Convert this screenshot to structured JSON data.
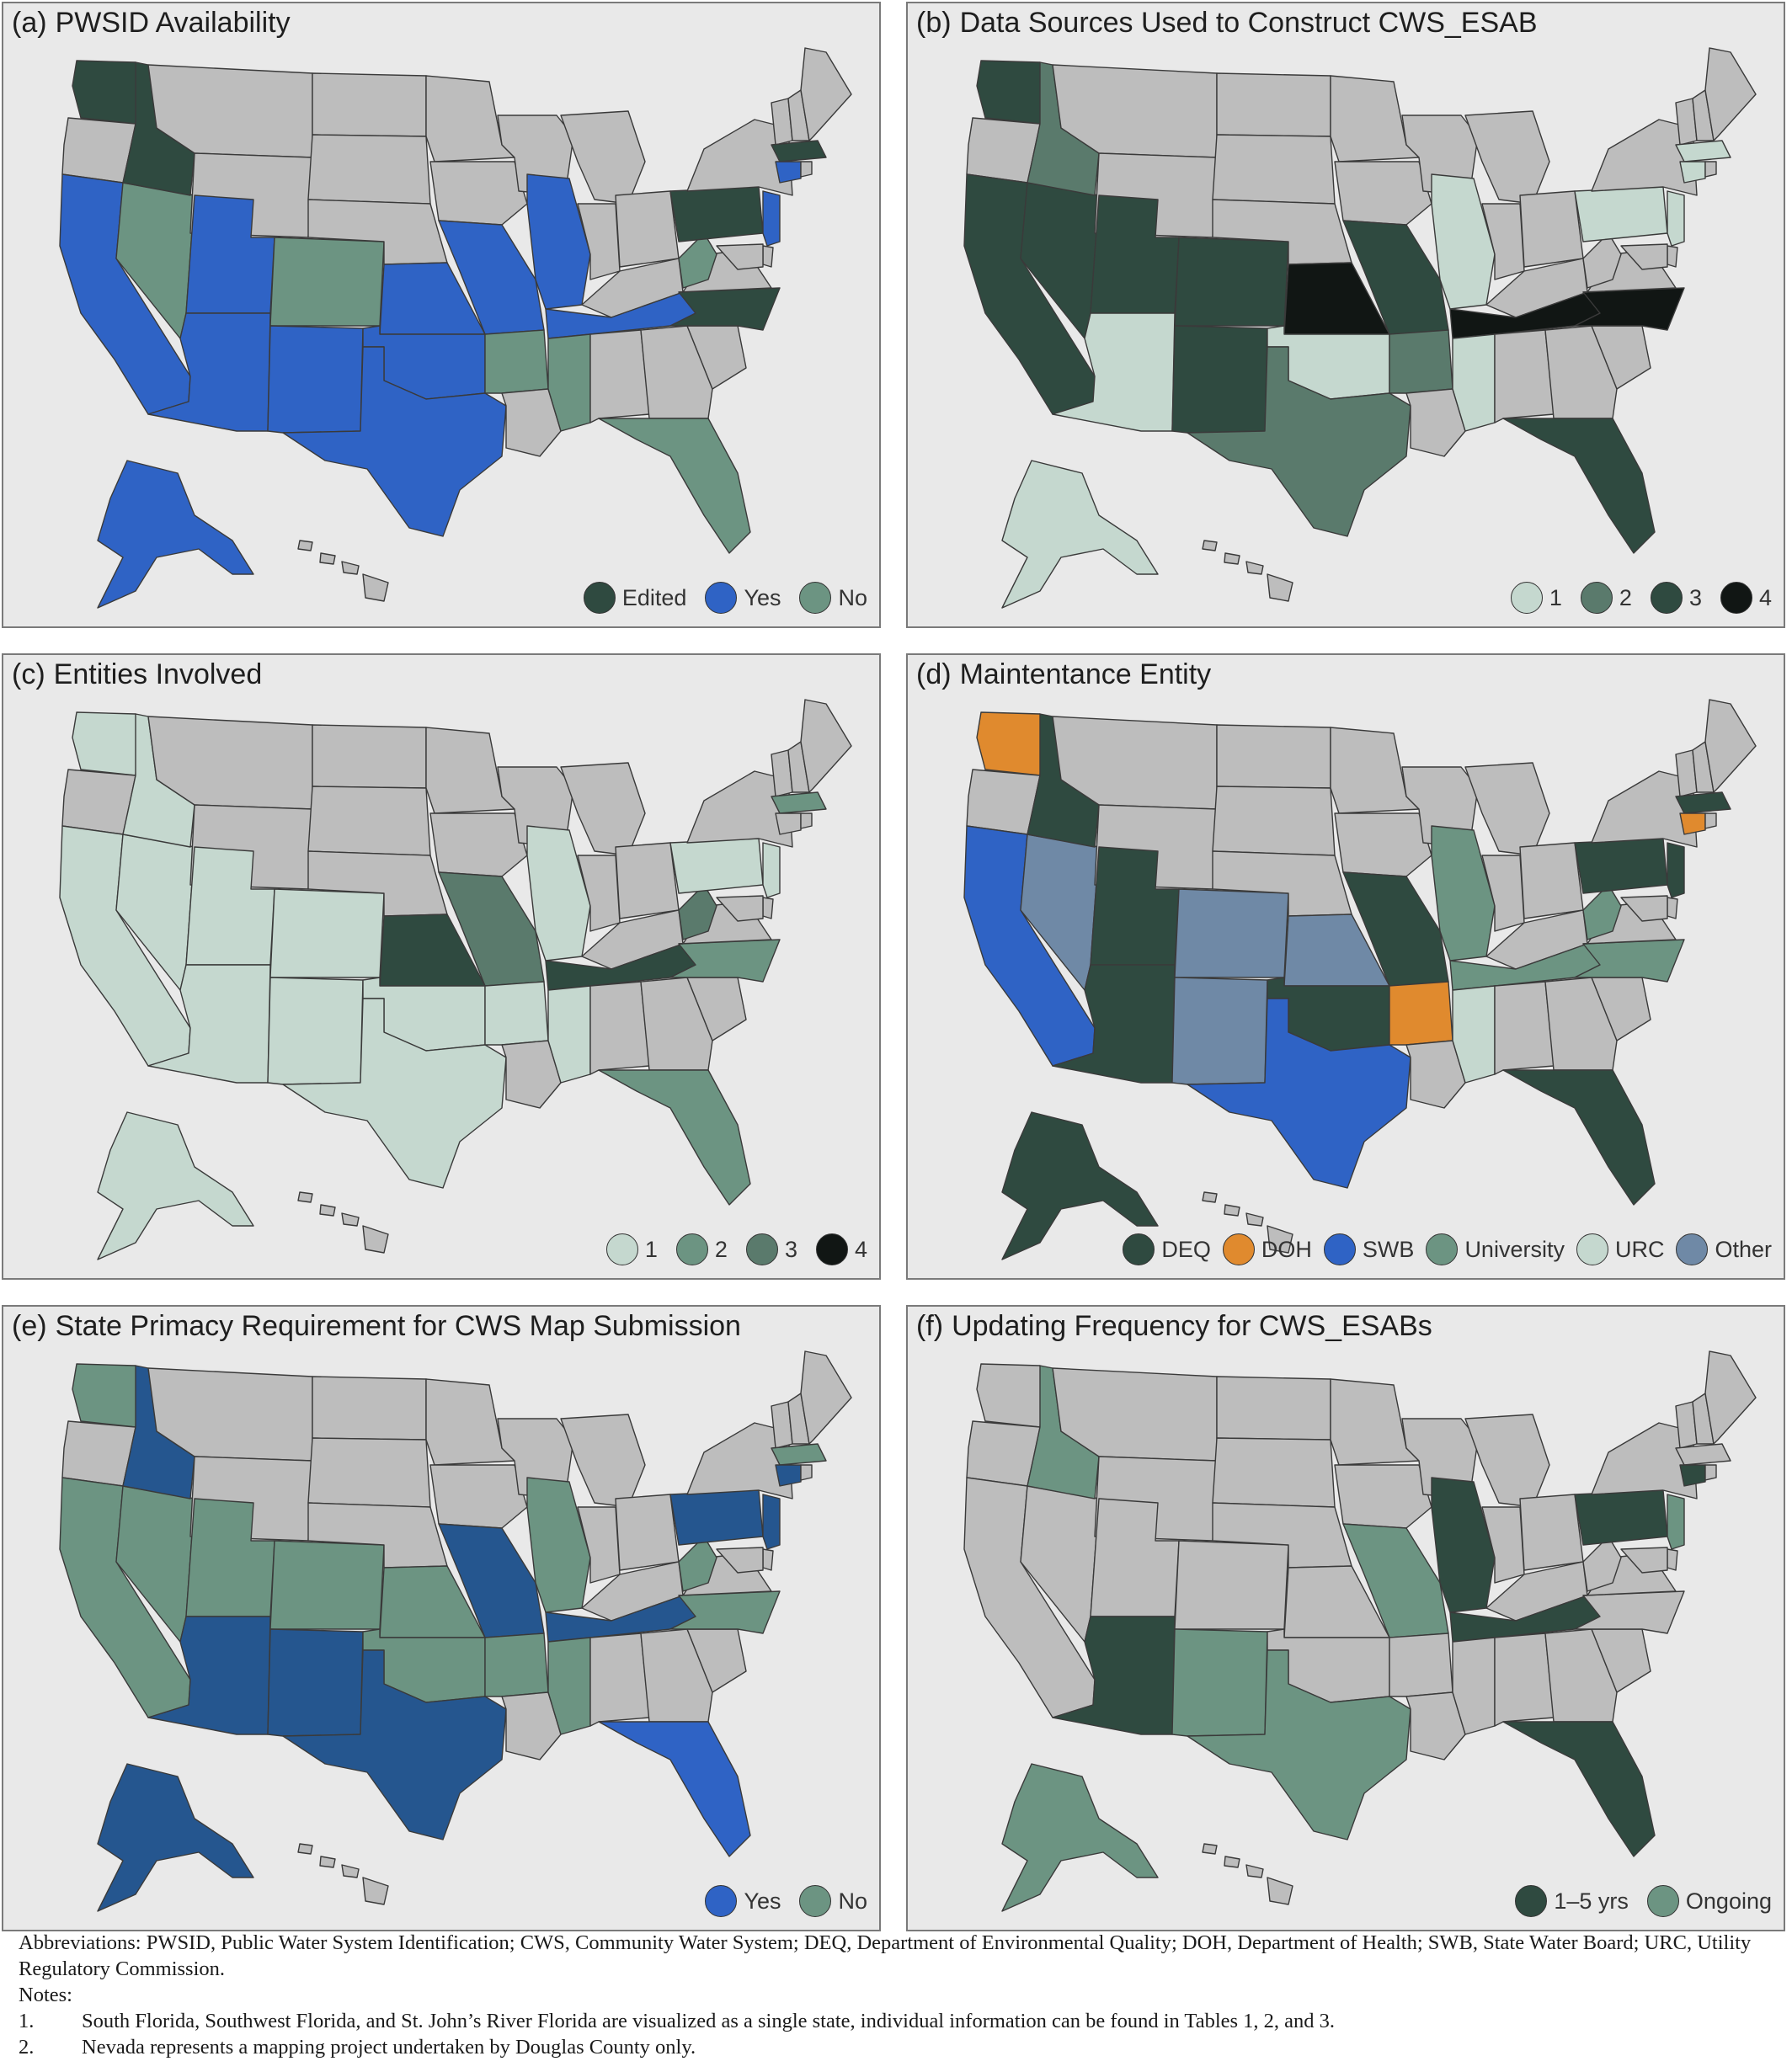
{
  "palette": {
    "gray": "#bdbdbd",
    "dark_green": "#2f4a40",
    "blue": "#2f63c5",
    "teal": "#6c9482",
    "light_mint": "#c5d8cf",
    "mid_green": "#5a7a6c",
    "near_black": "#111614",
    "orange": "#e08a2e",
    "slate": "#6f89a6",
    "navy": "#25568f"
  },
  "panels": [
    {
      "tag": "(a)",
      "title": "PWSID Availability",
      "legend": [
        {
          "label": "Edited",
          "color": "#2f4a40"
        },
        {
          "label": "Yes",
          "color": "#2f63c5"
        },
        {
          "label": "No",
          "color": "#6c9482"
        }
      ],
      "states": {
        "WA": "#2f4a40",
        "ID": "#2f4a40",
        "CA": "#2f63c5",
        "NV": "#6c9482",
        "UT": "#2f63c5",
        "AZ": "#2f63c5",
        "NM": "#2f63c5",
        "CO": "#6c9482",
        "TX": "#2f63c5",
        "OK": "#2f63c5",
        "KS": "#2f63c5",
        "MO": "#2f63c5",
        "IL": "#2f63c5",
        "TN": "#2f63c5",
        "AR": "#6c9482",
        "MS": "#6c9482",
        "FL": "#6c9482",
        "NC": "#2f4a40",
        "WV": "#6c9482",
        "PA": "#2f4a40",
        "NJ": "#2f63c5",
        "MA": "#2f4a40",
        "CT": "#2f63c5",
        "AK": "#2f63c5"
      }
    },
    {
      "tag": "(b)",
      "title": "Data Sources Used to Construct CWS_ESAB",
      "legend": [
        {
          "label": "1",
          "color": "#c5d8cf"
        },
        {
          "label": "2",
          "color": "#5a7a6c"
        },
        {
          "label": "3",
          "color": "#2f4a40"
        },
        {
          "label": "4",
          "color": "#111614"
        }
      ],
      "states": {
        "WA": "#2f4a40",
        "ID": "#5a7a6c",
        "CA": "#2f4a40",
        "NV": "#2f4a40",
        "UT": "#2f4a40",
        "CO": "#2f4a40",
        "NM": "#2f4a40",
        "AZ": "#c5d8cf",
        "TX": "#5a7a6c",
        "OK": "#c5d8cf",
        "KS": "#111614",
        "MO": "#2f4a40",
        "AR": "#5a7a6c",
        "IL": "#c5d8cf",
        "MS": "#c5d8cf",
        "TN": "#111614",
        "NC": "#111614",
        "FL": "#2f4a40",
        "PA": "#c5d8cf",
        "NJ": "#c5d8cf",
        "CT": "#c5d8cf",
        "MA": "#c5d8cf",
        "AK": "#c5d8cf"
      }
    },
    {
      "tag": "(c)",
      "title": "Entities Involved",
      "legend": [
        {
          "label": "1",
          "color": "#c5d8cf"
        },
        {
          "label": "2",
          "color": "#6c9482"
        },
        {
          "label": "3",
          "color": "#5a7a6c"
        },
        {
          "label": "4",
          "color": "#111614"
        }
      ],
      "states": {
        "WA": "#c5d8cf",
        "ID": "#c5d8cf",
        "CA": "#c5d8cf",
        "NV": "#c5d8cf",
        "UT": "#c5d8cf",
        "CO": "#c5d8cf",
        "AZ": "#c5d8cf",
        "NM": "#c5d8cf",
        "TX": "#c5d8cf",
        "OK": "#c5d8cf",
        "KS": "#2f4a40",
        "MO": "#5a7a6c",
        "AR": "#c5d8cf",
        "IL": "#c5d8cf",
        "MS": "#c5d8cf",
        "TN": "#2f4a40",
        "WV": "#5a7a6c",
        "NC": "#6c9482",
        "FL": "#6c9482",
        "PA": "#c5d8cf",
        "NJ": "#c5d8cf",
        "MA": "#6c9482",
        "AK": "#c5d8cf"
      }
    },
    {
      "tag": "(d)",
      "title": "Maintentance Entity",
      "legend": [
        {
          "label": "DEQ",
          "color": "#2f4a40"
        },
        {
          "label": "DOH",
          "color": "#e08a2e"
        },
        {
          "label": "SWB",
          "color": "#2f63c5"
        },
        {
          "label": "University",
          "color": "#6c9482"
        },
        {
          "label": "URC",
          "color": "#c5d8cf"
        },
        {
          "label": "Other",
          "color": "#6f89a6"
        }
      ],
      "states": {
        "WA": "#e08a2e",
        "ID": "#2f4a40",
        "CA": "#2f63c5",
        "NV": "#6f89a6",
        "UT": "#2f4a40",
        "AZ": "#2f4a40",
        "CO": "#6f89a6",
        "NM": "#6f89a6",
        "KS": "#6f89a6",
        "TX": "#2f63c5",
        "OK": "#2f4a40",
        "MO": "#2f4a40",
        "AR": "#e08a2e",
        "IL": "#6c9482",
        "TN": "#6c9482",
        "NC": "#6c9482",
        "MS": "#c5d8cf",
        "FL": "#2f4a40",
        "WV": "#6c9482",
        "PA": "#2f4a40",
        "NJ": "#2f4a40",
        "CT": "#e08a2e",
        "MA": "#2f4a40",
        "AK": "#2f4a40"
      }
    },
    {
      "tag": "(e)",
      "title": "State Primacy Requirement for CWS Map Submission",
      "legend": [
        {
          "label": "Yes",
          "color": "#2f63c5"
        },
        {
          "label": "No",
          "color": "#6c9482"
        }
      ],
      "states": {
        "WA": "#6c9482",
        "ID": "#25568f",
        "CA": "#6c9482",
        "NV": "#6c9482",
        "UT": "#6c9482",
        "CO": "#6c9482",
        "KS": "#6c9482",
        "AZ": "#25568f",
        "NM": "#25568f",
        "TX": "#25568f",
        "OK": "#6c9482",
        "MO": "#25568f",
        "AR": "#6c9482",
        "IL": "#6c9482",
        "MS": "#6c9482",
        "TN": "#25568f",
        "NC": "#6c9482",
        "WV": "#6c9482",
        "FL": "#2f63c5",
        "PA": "#25568f",
        "NJ": "#25568f",
        "CT": "#25568f",
        "MA": "#6c9482",
        "AK": "#25568f"
      }
    },
    {
      "tag": "(f)",
      "title": "Updating Frequency for CWS_ESABs",
      "legend": [
        {
          "label": "1–5 yrs",
          "color": "#2f4a40"
        },
        {
          "label": "Ongoing",
          "color": "#6c9482"
        }
      ],
      "states": {
        "ID": "#6c9482",
        "AZ": "#2f4a40",
        "NM": "#6c9482",
        "TX": "#6c9482",
        "MO": "#6c9482",
        "IL": "#2f4a40",
        "TN": "#2f4a40",
        "FL": "#2f4a40",
        "PA": "#2f4a40",
        "NJ": "#6c9482",
        "CT": "#2f4a40",
        "AK": "#6c9482"
      }
    }
  ],
  "footer": {
    "abbreviations": "Abbreviations: PWSID, Public Water System Identification; CWS, Community Water System; DEQ, Department of Environmental Quality; DOH, Department of Health; SWB, State Water Board; URC, Utility Regulatory Commission.",
    "notes_label": "Notes:",
    "notes": [
      {
        "num": "1.",
        "text": "South Florida, Southwest Florida, and St. John’s River Florida are visualized as a single state, individual information can be found in Tables 1, 2, and 3."
      },
      {
        "num": "2.",
        "text": "Nevada represents a mapping project undertaken by Douglas County only."
      }
    ]
  }
}
